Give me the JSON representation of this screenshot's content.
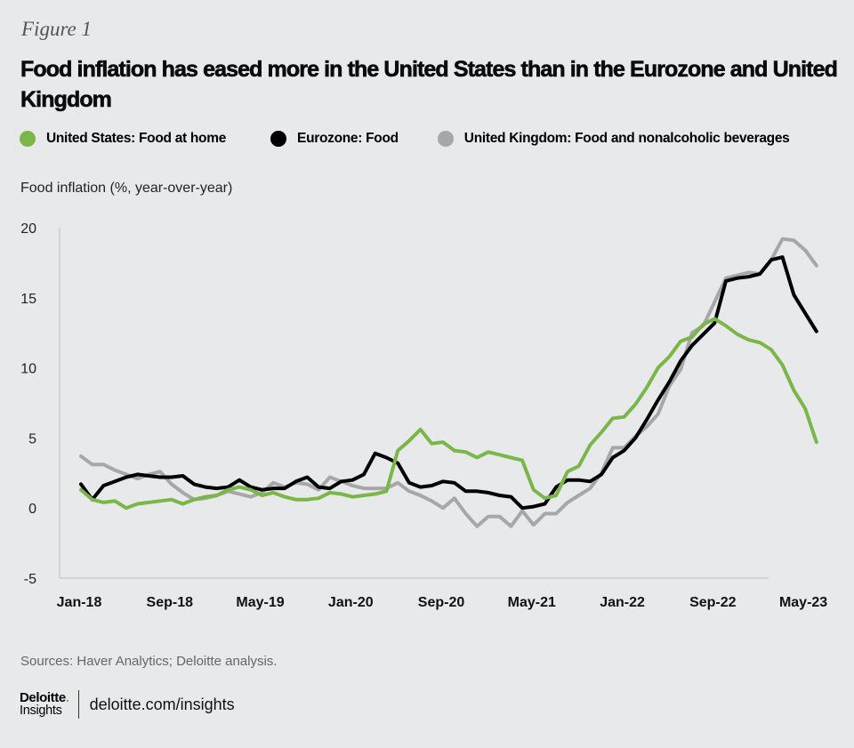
{
  "figure_label": "Figure 1",
  "title": "Food inflation has eased more in the United States than in the Eurozone and United Kingdom",
  "sources": "Sources: Haver Analytics; Deloitte analysis.",
  "footer": {
    "logo_main": "Deloitte",
    "logo_dot": ".",
    "logo_sub": "Insights",
    "url": "deloitte.com/insights"
  },
  "colors": {
    "background": "#e8e9eb",
    "us": "#7ab648",
    "eurozone": "#000000",
    "uk": "#a7a7a7",
    "axis": "#d2d3d5"
  },
  "chart_data": {
    "type": "line",
    "title": "Food inflation has eased more in the United States than in the Eurozone and United Kingdom",
    "xlabel": "",
    "ylabel": "Food inflation (%, year-over-year)",
    "ylim": [
      -5,
      20
    ],
    "yticks": [
      20,
      15,
      10,
      5,
      0,
      -5
    ],
    "x_start": "Jan-18",
    "x_end": "May-23",
    "x_frequency": "monthly",
    "xtick_labels": [
      "Jan-18",
      "Sep-18",
      "May-19",
      "Jan-20",
      "Sep-20",
      "May-21",
      "Jan-22",
      "Sep-22",
      "May-23"
    ],
    "xtick_month_index": [
      0,
      8,
      16,
      24,
      32,
      40,
      48,
      56,
      64
    ],
    "grid": false,
    "legend": "top",
    "series": [
      {
        "name": "United States: Food at home",
        "color": "#7ab648",
        "values": [
          1.3,
          0.6,
          0.4,
          0.5,
          0.0,
          0.3,
          0.4,
          0.5,
          0.6,
          0.3,
          0.6,
          0.8,
          0.9,
          1.3,
          1.5,
          1.3,
          0.9,
          1.1,
          0.8,
          0.6,
          0.6,
          0.7,
          1.1,
          1.0,
          0.8,
          0.9,
          1.0,
          1.2,
          4.1,
          4.8,
          5.6,
          4.6,
          4.7,
          4.1,
          4.0,
          3.6,
          4.0,
          3.8,
          3.6,
          3.4,
          1.3,
          0.7,
          0.9,
          2.6,
          3.0,
          4.5,
          5.4,
          6.4,
          6.5,
          7.4,
          8.6,
          10.0,
          10.8,
          11.9,
          12.2,
          13.1,
          13.5,
          13.0,
          12.4,
          12.0,
          11.8,
          11.3,
          10.2,
          8.4,
          7.1,
          4.7
        ]
      },
      {
        "name": "Eurozone: Food",
        "color": "#000000",
        "values": [
          1.7,
          0.6,
          1.6,
          1.9,
          2.2,
          2.4,
          2.3,
          2.2,
          2.2,
          2.3,
          1.7,
          1.5,
          1.4,
          1.5,
          2.0,
          1.5,
          1.3,
          1.4,
          1.4,
          1.9,
          2.2,
          1.5,
          1.4,
          1.9,
          2.0,
          2.4,
          3.9,
          3.6,
          3.2,
          1.8,
          1.5,
          1.6,
          1.9,
          1.8,
          1.2,
          1.2,
          1.1,
          0.9,
          0.8,
          0.0,
          0.1,
          0.3,
          1.5,
          2.0,
          2.0,
          1.9,
          2.4,
          3.6,
          4.1,
          5.0,
          6.3,
          7.7,
          9.0,
          10.5,
          11.6,
          12.4,
          13.2,
          16.2,
          16.4,
          16.5,
          16.7,
          17.7,
          17.9,
          15.2,
          13.9,
          12.6
        ]
      },
      {
        "name": "United Kingdom: Food and nonalcoholic beverages",
        "color": "#a7a7a7",
        "values": [
          3.7,
          3.1,
          3.1,
          2.7,
          2.4,
          2.1,
          2.4,
          2.6,
          1.7,
          1.1,
          0.6,
          0.7,
          0.9,
          1.2,
          1.0,
          0.8,
          1.1,
          1.8,
          1.5,
          1.8,
          1.7,
          1.3,
          2.2,
          1.9,
          1.6,
          1.4,
          1.4,
          1.4,
          1.8,
          1.2,
          0.9,
          0.5,
          0.0,
          0.7,
          -0.4,
          -1.3,
          -0.6,
          -0.6,
          -1.3,
          -0.2,
          -1.2,
          -0.4,
          -0.4,
          0.4,
          0.9,
          1.4,
          2.5,
          4.3,
          4.3,
          5.1,
          5.8,
          6.7,
          8.7,
          9.9,
          12.5,
          13.0,
          14.7,
          16.4,
          16.6,
          16.8,
          16.7,
          17.7,
          19.2,
          19.1,
          18.4,
          17.3
        ]
      }
    ]
  }
}
